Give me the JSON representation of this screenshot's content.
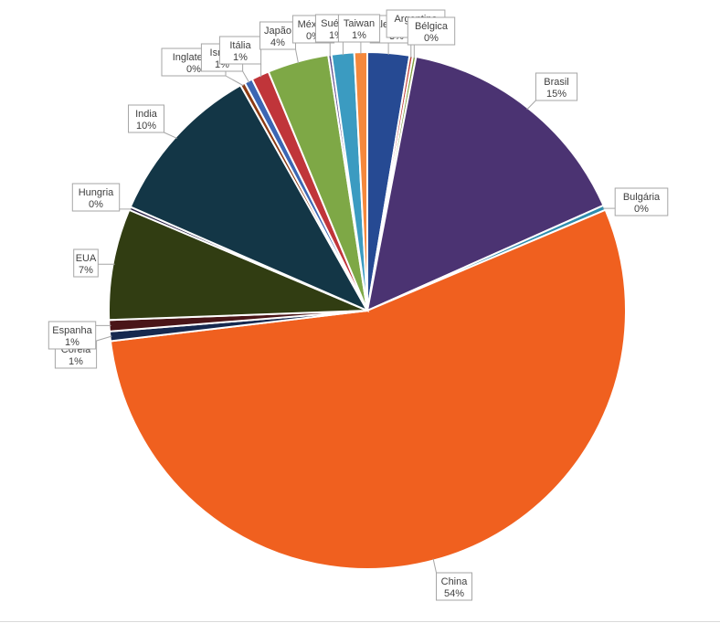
{
  "chart_data": {
    "type": "pie",
    "title": "",
    "slices": [
      {
        "label": "Alemanha",
        "pct_label": "3%",
        "value": 2.6,
        "color": "#264a93"
      },
      {
        "label": "Argentina",
        "pct_label": "0%",
        "value": 0.2,
        "color": "#c2413a"
      },
      {
        "label": "Bélgica",
        "pct_label": "0%",
        "value": 0.2,
        "color": "#7f9f3f"
      },
      {
        "label": "Brasil",
        "pct_label": "15%",
        "value": 15.2,
        "color": "#4b3372"
      },
      {
        "label": "Bulgária",
        "pct_label": "0%",
        "value": 0.3,
        "color": "#2e8dad"
      },
      {
        "label": "China",
        "pct_label": "54%",
        "value": 54.1,
        "color": "#f0601f"
      },
      {
        "label": "Coreia",
        "pct_label": "1%",
        "value": 0.6,
        "color": "#16294f"
      },
      {
        "label": "Espanha",
        "pct_label": "1%",
        "value": 0.7,
        "color": "#4a1518"
      },
      {
        "label": "EUA",
        "pct_label": "7%",
        "value": 6.9,
        "color": "#313d12"
      },
      {
        "label": "Hungria",
        "pct_label": "0%",
        "value": 0.2,
        "color": "#2a2147"
      },
      {
        "label": "India",
        "pct_label": "10%",
        "value": 10.2,
        "color": "#133646"
      },
      {
        "label": "Inglaterra",
        "pct_label": "0%",
        "value": 0.3,
        "color": "#8c3a12"
      },
      {
        "label": "Israel",
        "pct_label": "1%",
        "value": 0.5,
        "color": "#3b66b3"
      },
      {
        "label": "Itália",
        "pct_label": "1%",
        "value": 1.1,
        "color": "#c0353a"
      },
      {
        "label": "Japão",
        "pct_label": "4%",
        "value": 3.8,
        "color": "#7ea846"
      },
      {
        "label": "México",
        "pct_label": "0%",
        "value": 0.2,
        "color": "#5e4a8c"
      },
      {
        "label": "Suécia",
        "pct_label": "1%",
        "value": 1.4,
        "color": "#3b9bc1"
      },
      {
        "label": "Taiwan",
        "pct_label": "1%",
        "value": 0.8,
        "color": "#f5883c"
      }
    ]
  }
}
